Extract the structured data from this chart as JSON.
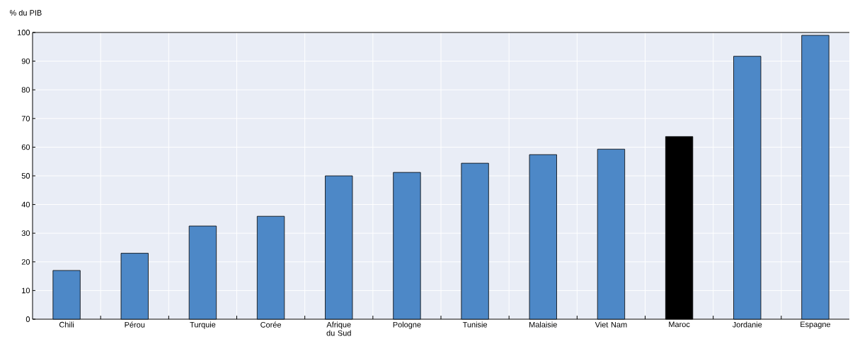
{
  "chart_data": {
    "type": "bar",
    "ylabel": "% du PIB",
    "categories": [
      "Chili",
      "Pérou",
      "Turquie",
      "Corée",
      "Afrique du Sud",
      "Pologne",
      "Tunisie",
      "Malaisie",
      "Viet Nam",
      "Maroc",
      "Jordanie",
      "Espagne"
    ],
    "values": [
      17.0,
      23.0,
      32.5,
      35.9,
      50.0,
      51.2,
      54.4,
      57.4,
      59.3,
      63.7,
      91.7,
      99.0
    ],
    "colors": [
      "#4d88c7",
      "#4d88c7",
      "#4d88c7",
      "#4d88c7",
      "#4d88c7",
      "#4d88c7",
      "#4d88c7",
      "#4d88c7",
      "#4d88c7",
      "#000000",
      "#4d88c7",
      "#4d88c7"
    ],
    "ylim": [
      0,
      100
    ],
    "yticks": [
      0,
      10,
      20,
      30,
      40,
      50,
      60,
      70,
      80,
      90,
      100
    ],
    "grid": true
  }
}
